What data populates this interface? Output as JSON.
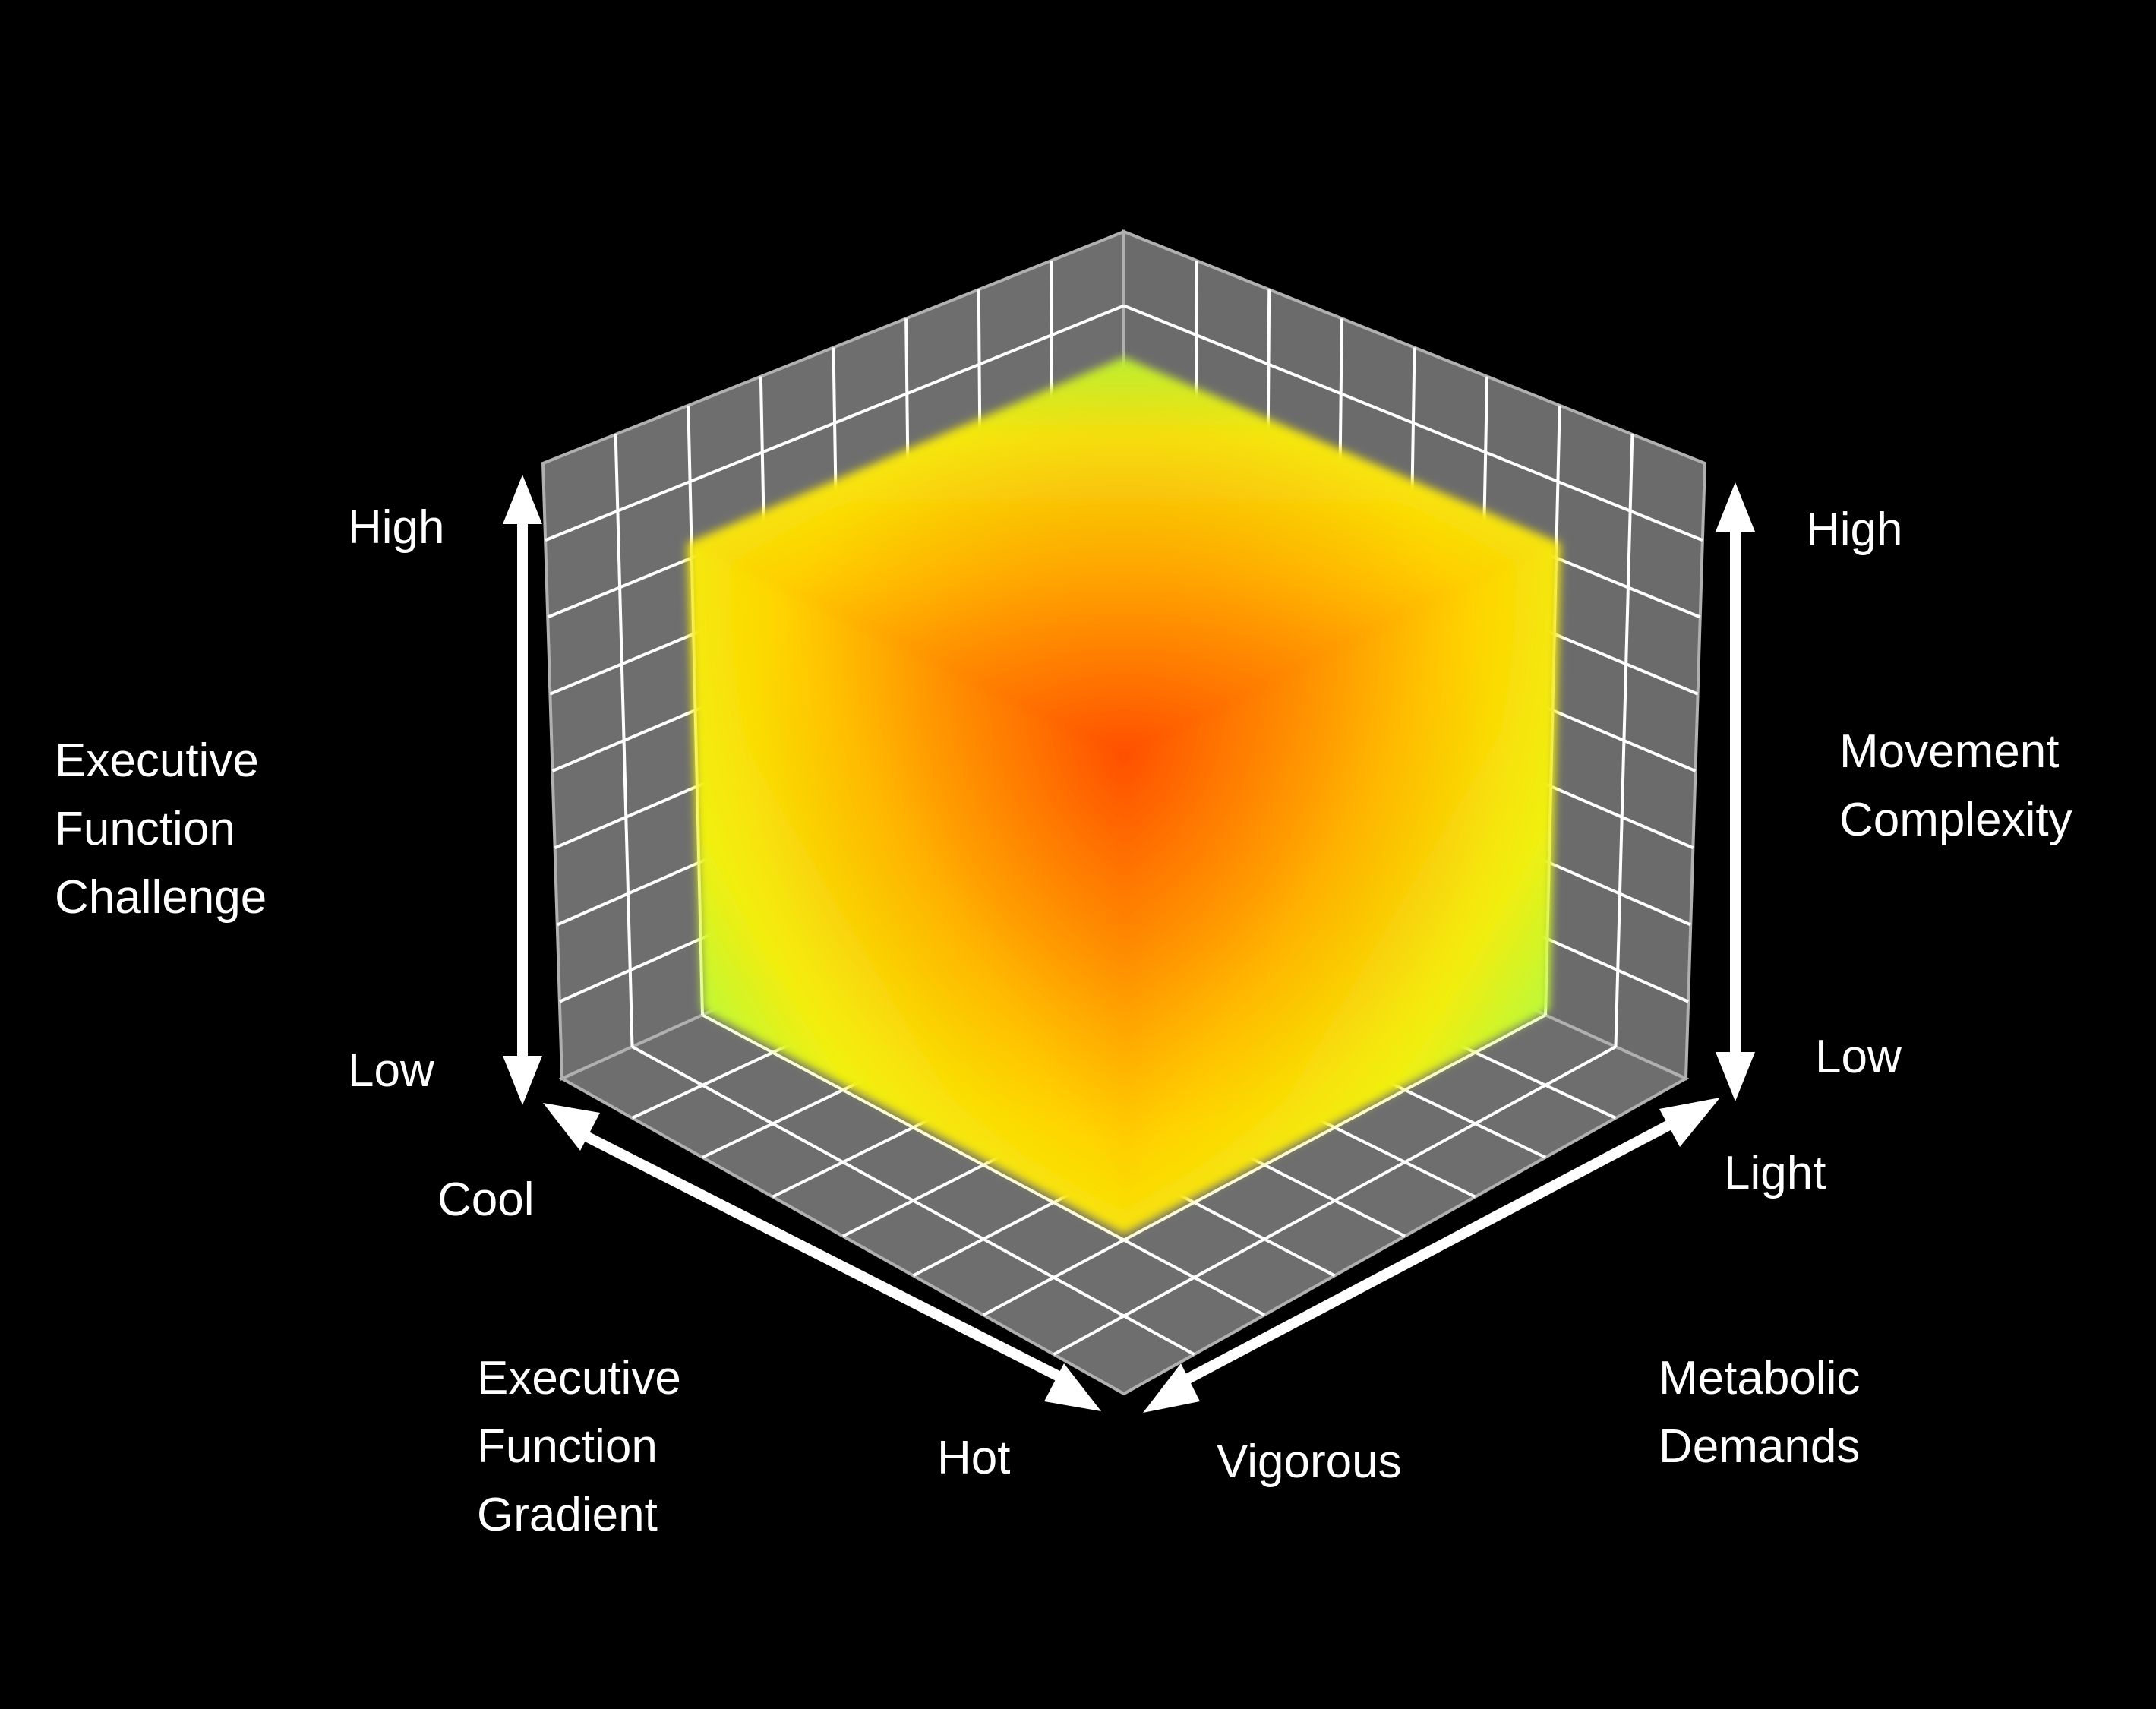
{
  "colors": {
    "background": "#000000",
    "pane_gray": "#6e6e6e",
    "grid_line": "#ffffff",
    "arrow": "#ffffff",
    "text": "#ffffff",
    "gradient_hot": "#ff4a00",
    "gradient_mid_orange": "#ff9a00",
    "gradient_yellow": "#f2ff10",
    "gradient_cool": "#6aff70"
  },
  "axes": {
    "vertical_left": {
      "title_lines": [
        "Executive",
        "Function",
        "Challenge"
      ],
      "high_label": "High",
      "low_label": "Low"
    },
    "vertical_right": {
      "title_lines": [
        "Movement",
        "Complexity"
      ],
      "high_label": "High",
      "low_label": "Low"
    },
    "depth_left": {
      "title_lines": [
        "Executive",
        "Function",
        "Gradient"
      ],
      "start_label": "Cool",
      "end_label": "Hot"
    },
    "depth_right": {
      "title_lines": [
        "Metabolic",
        "Demands"
      ],
      "start_label": "Light",
      "end_label": "Vigorous"
    }
  },
  "gradient_description_note": ""
}
